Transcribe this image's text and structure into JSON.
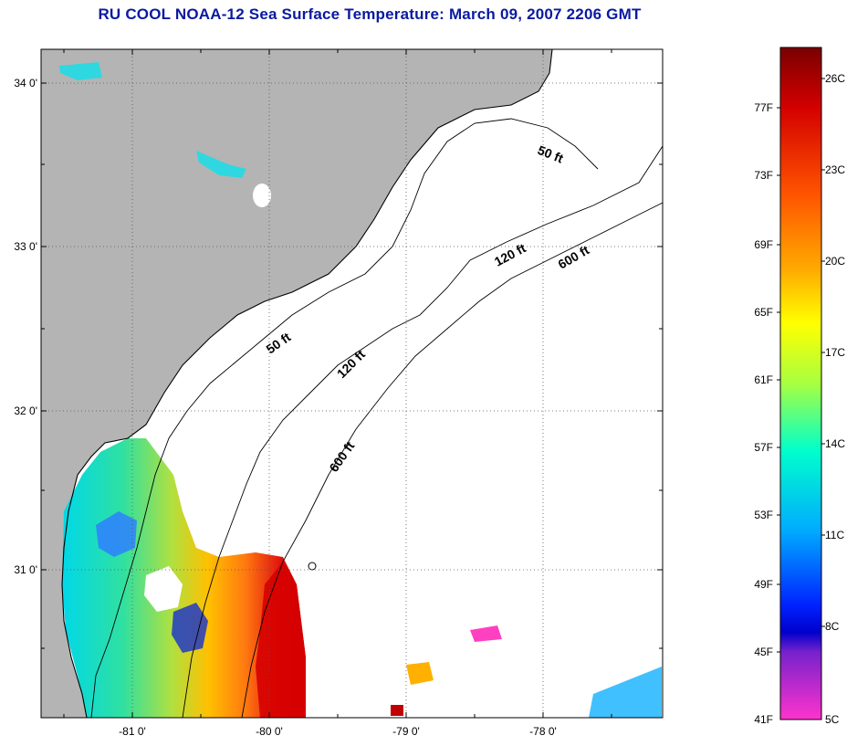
{
  "title": "RU COOL  NOAA-12  Sea Surface Temperature:  March 09, 2007 2206 GMT",
  "map": {
    "lat_labels": [
      "34 0'",
      "33 0'",
      "32 0'",
      "31 0'"
    ],
    "lon_labels": [
      "-81 0'",
      "-80 0'",
      "-79 0'",
      "-78 0'"
    ],
    "contour_labels": {
      "c50_north": "50 ft",
      "c50_south": "50 ft",
      "c120_north": "120 ft",
      "c120_south": "120 ft",
      "c600_north": "600 ft",
      "c600_south": "600 ft"
    },
    "colors": {
      "land": "#b4b4b4",
      "ocean_clouds": "#ffffff",
      "coastline": "#000000"
    }
  },
  "colorbar": {
    "fahrenheit_labels": [
      "77F",
      "73F",
      "69F",
      "65F",
      "61F",
      "57F",
      "53F",
      "49F",
      "45F",
      "41F"
    ],
    "celsius_labels": [
      "26C",
      "23C",
      "20C",
      "17C",
      "14C",
      "11C",
      "8C",
      "5C"
    ],
    "gradient_stops": [
      "#7a0000",
      "#d40000",
      "#ff5500",
      "#ffaa00",
      "#ffff00",
      "#a8ff40",
      "#00ffcc",
      "#00aaff",
      "#0022ff",
      "#0000cc",
      "#7722cc",
      "#ff33cc"
    ]
  }
}
